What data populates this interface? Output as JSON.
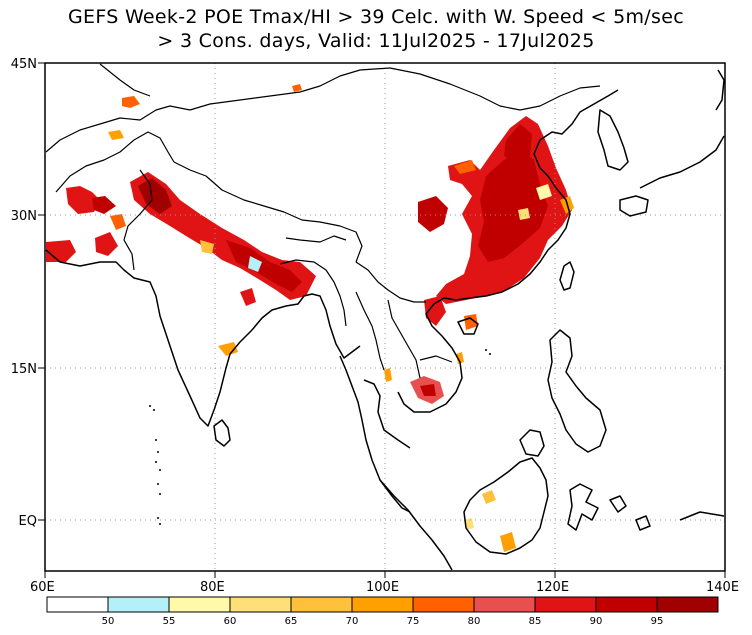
{
  "title": {
    "line1": "GEFS Week-2 POE Tmax/HI > 39 Celc. with W. Speed < 5m/sec",
    "line2": "> 3 Cons. days, Valid: 11Jul2025 - 17Jul2025"
  },
  "axes": {
    "lon_labels": [
      "60E",
      "80E",
      "100E",
      "120E",
      "140E"
    ],
    "lat_labels": [
      "45N",
      "30N",
      "15N",
      "EQ"
    ],
    "lon_range": [
      60,
      140
    ],
    "lat_range": [
      -5,
      45
    ]
  },
  "colorbar": {
    "labels": [
      "50",
      "55",
      "60",
      "65",
      "70",
      "75",
      "80",
      "85",
      "90",
      "95"
    ],
    "colors": [
      "#ffffff",
      "#b4f0fa",
      "#fffaaa",
      "#ffe078",
      "#ffc03c",
      "#ffa000",
      "#ff6000",
      "#e85050",
      "#e01414",
      "#c00000",
      "#a00000"
    ]
  }
}
